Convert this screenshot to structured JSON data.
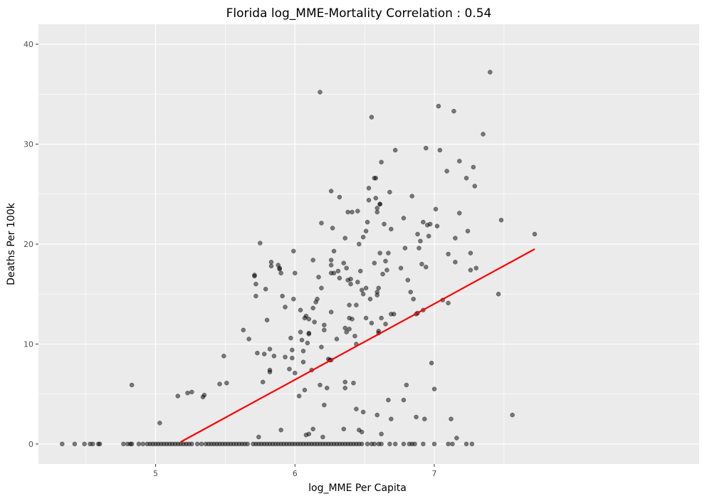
{
  "chart_data": {
    "type": "scatter",
    "title": "Florida log_MME-Mortality Correlation : 0.54",
    "xlabel": "log_MME Per Capita",
    "ylabel": "Deaths Per 100k",
    "xlim": [
      4.16,
      8.9
    ],
    "ylim": [
      -2,
      42
    ],
    "x_ticks": [
      5,
      6,
      7
    ],
    "y_ticks": [
      0,
      10,
      20,
      30,
      40
    ],
    "grid": true,
    "panel_color": "#ebebeb",
    "grid_color": "#ffffff",
    "point_color": "#000000",
    "point_opacity": 0.5,
    "line_color": "#ff0000",
    "fit_line": {
      "x": [
        5.18,
        7.72
      ],
      "y": [
        0.2,
        19.5
      ]
    },
    "points": [
      [
        4.33,
        0
      ],
      [
        4.42,
        0
      ],
      [
        4.49,
        0
      ],
      [
        4.53,
        0
      ],
      [
        4.55,
        0
      ],
      [
        4.59,
        0
      ],
      [
        4.6,
        0
      ],
      [
        4.77,
        0
      ],
      [
        4.8,
        0
      ],
      [
        4.82,
        0
      ],
      [
        4.83,
        0
      ],
      [
        4.88,
        0
      ],
      [
        4.91,
        0
      ],
      [
        4.94,
        0
      ],
      [
        4.96,
        0
      ],
      [
        4.98,
        0
      ],
      [
        5.0,
        0
      ],
      [
        5.02,
        0
      ],
      [
        5.04,
        0
      ],
      [
        5.06,
        0
      ],
      [
        5.08,
        0
      ],
      [
        5.1,
        0
      ],
      [
        5.12,
        0
      ],
      [
        5.14,
        0
      ],
      [
        5.16,
        0
      ],
      [
        5.18,
        0
      ],
      [
        5.2,
        0
      ],
      [
        5.22,
        0
      ],
      [
        5.24,
        0
      ],
      [
        5.26,
        0
      ],
      [
        5.3,
        0
      ],
      [
        5.33,
        0
      ],
      [
        5.36,
        0
      ],
      [
        5.38,
        0
      ],
      [
        5.4,
        0
      ],
      [
        5.42,
        0
      ],
      [
        5.44,
        0
      ],
      [
        5.46,
        0
      ],
      [
        5.48,
        0
      ],
      [
        5.5,
        0
      ],
      [
        5.52,
        0
      ],
      [
        5.54,
        0
      ],
      [
        5.56,
        0
      ],
      [
        5.58,
        0
      ],
      [
        5.6,
        0
      ],
      [
        5.62,
        0
      ],
      [
        5.64,
        0
      ],
      [
        5.66,
        0
      ],
      [
        5.7,
        0
      ],
      [
        5.72,
        0
      ],
      [
        5.74,
        0
      ],
      [
        5.76,
        0
      ],
      [
        5.78,
        0
      ],
      [
        5.8,
        0
      ],
      [
        5.82,
        0
      ],
      [
        5.84,
        0
      ],
      [
        5.86,
        0
      ],
      [
        5.88,
        0
      ],
      [
        5.9,
        0
      ],
      [
        5.92,
        0
      ],
      [
        5.94,
        0
      ],
      [
        5.96,
        0
      ],
      [
        5.98,
        0
      ],
      [
        6.0,
        0
      ],
      [
        6.02,
        0
      ],
      [
        6.04,
        0
      ],
      [
        6.06,
        0
      ],
      [
        6.08,
        0
      ],
      [
        6.1,
        0
      ],
      [
        6.12,
        0
      ],
      [
        6.14,
        0
      ],
      [
        6.16,
        0
      ],
      [
        6.18,
        0
      ],
      [
        6.2,
        0
      ],
      [
        6.22,
        0
      ],
      [
        6.24,
        0
      ],
      [
        6.26,
        0
      ],
      [
        6.28,
        0
      ],
      [
        6.3,
        0
      ],
      [
        6.32,
        0
      ],
      [
        6.34,
        0
      ],
      [
        6.36,
        0
      ],
      [
        6.38,
        0
      ],
      [
        6.4,
        0
      ],
      [
        6.42,
        0
      ],
      [
        6.44,
        0
      ],
      [
        6.46,
        0
      ],
      [
        6.48,
        0
      ],
      [
        6.52,
        0
      ],
      [
        6.55,
        0
      ],
      [
        6.57,
        0
      ],
      [
        6.6,
        0
      ],
      [
        6.62,
        0
      ],
      [
        6.68,
        0
      ],
      [
        6.72,
        0
      ],
      [
        6.78,
        0
      ],
      [
        6.82,
        0
      ],
      [
        6.84,
        0
      ],
      [
        6.86,
        0
      ],
      [
        6.92,
        0
      ],
      [
        7.0,
        0
      ],
      [
        7.1,
        0
      ],
      [
        7.13,
        0
      ],
      [
        7.23,
        0
      ],
      [
        7.27,
        0
      ],
      [
        4.83,
        5.9
      ],
      [
        5.03,
        2.1
      ],
      [
        5.16,
        4.8
      ],
      [
        5.23,
        5.1
      ],
      [
        5.26,
        5.2
      ],
      [
        5.34,
        4.7
      ],
      [
        5.35,
        4.9
      ],
      [
        5.46,
        6.0
      ],
      [
        5.49,
        8.8
      ],
      [
        5.51,
        6.1
      ],
      [
        5.63,
        11.4
      ],
      [
        5.67,
        10.5
      ],
      [
        5.71,
        16.9
      ],
      [
        5.71,
        16.8
      ],
      [
        5.72,
        16.0
      ],
      [
        5.72,
        14.8
      ],
      [
        5.73,
        9.1
      ],
      [
        5.75,
        20.1
      ],
      [
        5.77,
        6.2
      ],
      [
        5.78,
        9.0
      ],
      [
        5.79,
        15.5
      ],
      [
        5.8,
        12.4
      ],
      [
        5.82,
        9.5
      ],
      [
        5.82,
        7.4
      ],
      [
        5.82,
        7.2
      ],
      [
        5.83,
        17.8
      ],
      [
        5.83,
        18.2
      ],
      [
        5.85,
        8.8
      ],
      [
        5.88,
        17.9
      ],
      [
        5.89,
        17.5
      ],
      [
        5.89,
        17.6
      ],
      [
        5.9,
        17.1
      ],
      [
        5.91,
        14.8
      ],
      [
        5.93,
        8.7
      ],
      [
        5.93,
        13.7
      ],
      [
        5.96,
        7.5
      ],
      [
        5.97,
        10.6
      ],
      [
        5.98,
        8.6
      ],
      [
        5.98,
        9.4
      ],
      [
        5.99,
        14.5
      ],
      [
        5.99,
        19.3
      ],
      [
        6.0,
        7.1
      ],
      [
        6.0,
        17.1
      ],
      [
        6.03,
        4.8
      ],
      [
        6.04,
        11.2
      ],
      [
        6.04,
        13.4
      ],
      [
        6.05,
        10.4
      ],
      [
        6.06,
        8.2
      ],
      [
        6.06,
        9.3
      ],
      [
        6.07,
        12.6
      ],
      [
        6.07,
        5.4
      ],
      [
        6.08,
        12.8
      ],
      [
        6.09,
        10.1
      ],
      [
        6.1,
        11.1
      ],
      [
        6.1,
        11.0
      ],
      [
        6.1,
        12.5
      ],
      [
        6.12,
        7.4
      ],
      [
        6.13,
        13.6
      ],
      [
        6.13,
        18.4
      ],
      [
        6.14,
        12.2
      ],
      [
        6.15,
        14.2
      ],
      [
        6.16,
        14.5
      ],
      [
        6.17,
        16.7
      ],
      [
        6.18,
        35.2
      ],
      [
        6.18,
        5.9
      ],
      [
        6.19,
        9.7
      ],
      [
        6.19,
        15.6
      ],
      [
        6.19,
        22.1
      ],
      [
        6.21,
        11.4
      ],
      [
        6.21,
        11.9
      ],
      [
        6.21,
        3.9
      ],
      [
        6.23,
        5.6
      ],
      [
        6.24,
        8.5
      ],
      [
        6.25,
        8.4
      ],
      [
        6.26,
        8.4
      ],
      [
        6.26,
        13.2
      ],
      [
        6.26,
        17.1
      ],
      [
        6.26,
        17.9
      ],
      [
        6.26,
        18.4
      ],
      [
        6.26,
        25.3
      ],
      [
        6.27,
        21.6
      ],
      [
        6.28,
        17.1
      ],
      [
        6.28,
        19.3
      ],
      [
        6.3,
        10.5
      ],
      [
        6.31,
        17.3
      ],
      [
        6.32,
        16.6
      ],
      [
        6.32,
        24.7
      ],
      [
        6.35,
        18.1
      ],
      [
        6.36,
        20.6
      ],
      [
        6.36,
        11.6
      ],
      [
        6.36,
        6.2
      ],
      [
        6.36,
        5.6
      ],
      [
        6.37,
        17.6
      ],
      [
        6.37,
        11.2
      ],
      [
        6.38,
        16.4
      ],
      [
        6.38,
        23.2
      ],
      [
        6.39,
        12.6
      ],
      [
        6.39,
        11.5
      ],
      [
        6.39,
        13.9
      ],
      [
        6.4,
        16.0
      ],
      [
        6.4,
        16.5
      ],
      [
        6.41,
        12.5
      ],
      [
        6.41,
        23.2
      ],
      [
        6.42,
        6.1
      ],
      [
        6.43,
        10.8
      ],
      [
        6.44,
        13.9
      ],
      [
        6.44,
        10.0
      ],
      [
        6.45,
        16.2
      ],
      [
        6.45,
        23.3
      ],
      [
        6.46,
        20.0
      ],
      [
        6.47,
        17.3
      ],
      [
        6.48,
        15.4
      ],
      [
        6.49,
        15.0
      ],
      [
        6.49,
        20.7
      ],
      [
        6.51,
        21.3
      ],
      [
        6.51,
        15.6
      ],
      [
        6.51,
        12.6
      ],
      [
        6.52,
        22.2
      ],
      [
        6.53,
        25.6
      ],
      [
        6.53,
        24.4
      ],
      [
        6.54,
        14.5
      ],
      [
        6.55,
        12.1
      ],
      [
        6.55,
        32.7
      ],
      [
        6.57,
        26.6
      ],
      [
        6.57,
        18.1
      ],
      [
        6.58,
        24.6
      ],
      [
        6.58,
        26.6
      ],
      [
        6.59,
        23.6
      ],
      [
        6.59,
        23.2
      ],
      [
        6.59,
        15.2
      ],
      [
        6.59,
        14.9
      ],
      [
        6.6,
        11.1
      ],
      [
        6.6,
        11.3
      ],
      [
        6.6,
        15.6
      ],
      [
        6.61,
        19.1
      ],
      [
        6.61,
        24.0
      ],
      [
        6.61,
        24.0
      ],
      [
        6.62,
        28.2
      ],
      [
        6.62,
        12.6
      ],
      [
        6.63,
        17.0
      ],
      [
        6.64,
        22.0
      ],
      [
        6.65,
        18.3
      ],
      [
        6.65,
        12.0
      ],
      [
        6.66,
        17.4
      ],
      [
        6.67,
        19.1
      ],
      [
        6.68,
        25.2
      ],
      [
        6.69,
        13.0
      ],
      [
        6.69,
        21.5
      ],
      [
        6.71,
        13.0
      ],
      [
        6.72,
        29.4
      ],
      [
        6.76,
        17.6
      ],
      [
        6.78,
        22.6
      ],
      [
        6.79,
        19.6
      ],
      [
        6.81,
        16.4
      ],
      [
        6.83,
        15.2
      ],
      [
        6.84,
        24.8
      ],
      [
        6.85,
        14.5
      ],
      [
        6.87,
        13.0
      ],
      [
        6.88,
        13.1
      ],
      [
        6.88,
        21.0
      ],
      [
        6.89,
        19.6
      ],
      [
        6.9,
        20.3
      ],
      [
        6.91,
        18.0
      ],
      [
        6.92,
        13.4
      ],
      [
        6.92,
        22.2
      ],
      [
        6.94,
        29.6
      ],
      [
        6.94,
        17.7
      ],
      [
        6.95,
        21.9
      ],
      [
        6.96,
        20.8
      ],
      [
        6.97,
        22.0
      ],
      [
        6.98,
        8.1
      ],
      [
        7.0,
        5.5
      ],
      [
        7.01,
        23.5
      ],
      [
        7.02,
        21.8
      ],
      [
        7.03,
        33.8
      ],
      [
        7.04,
        29.4
      ],
      [
        7.06,
        14.4
      ],
      [
        7.09,
        27.3
      ],
      [
        7.1,
        19.0
      ],
      [
        7.1,
        14.1
      ],
      [
        7.12,
        2.5
      ],
      [
        7.14,
        33.3
      ],
      [
        7.15,
        20.6
      ],
      [
        7.15,
        18.2
      ],
      [
        7.18,
        28.3
      ],
      [
        7.18,
        23.1
      ],
      [
        7.23,
        26.6
      ],
      [
        7.24,
        21.3
      ],
      [
        7.26,
        17.4
      ],
      [
        7.26,
        19.1
      ],
      [
        7.28,
        27.7
      ],
      [
        7.29,
        25.8
      ],
      [
        7.3,
        17.6
      ],
      [
        7.35,
        31.0
      ],
      [
        7.4,
        37.2
      ],
      [
        7.46,
        15.0
      ],
      [
        7.48,
        22.4
      ],
      [
        7.56,
        2.9
      ],
      [
        7.72,
        21.0
      ],
      [
        5.74,
        0.7
      ],
      [
        5.9,
        1.4
      ],
      [
        6.08,
        0.9
      ],
      [
        6.1,
        1.0
      ],
      [
        6.13,
        1.5
      ],
      [
        6.2,
        0.7
      ],
      [
        6.35,
        1.5
      ],
      [
        6.46,
        1.4
      ],
      [
        6.48,
        1.2
      ],
      [
        6.49,
        3.2
      ],
      [
        6.44,
        3.5
      ],
      [
        6.59,
        2.9
      ],
      [
        6.62,
        1.0
      ],
      [
        6.67,
        4.4
      ],
      [
        6.69,
        2.5
      ],
      [
        6.78,
        4.4
      ],
      [
        6.8,
        5.9
      ],
      [
        6.87,
        2.7
      ],
      [
        6.93,
        2.5
      ],
      [
        7.16,
        0.6
      ]
    ]
  }
}
